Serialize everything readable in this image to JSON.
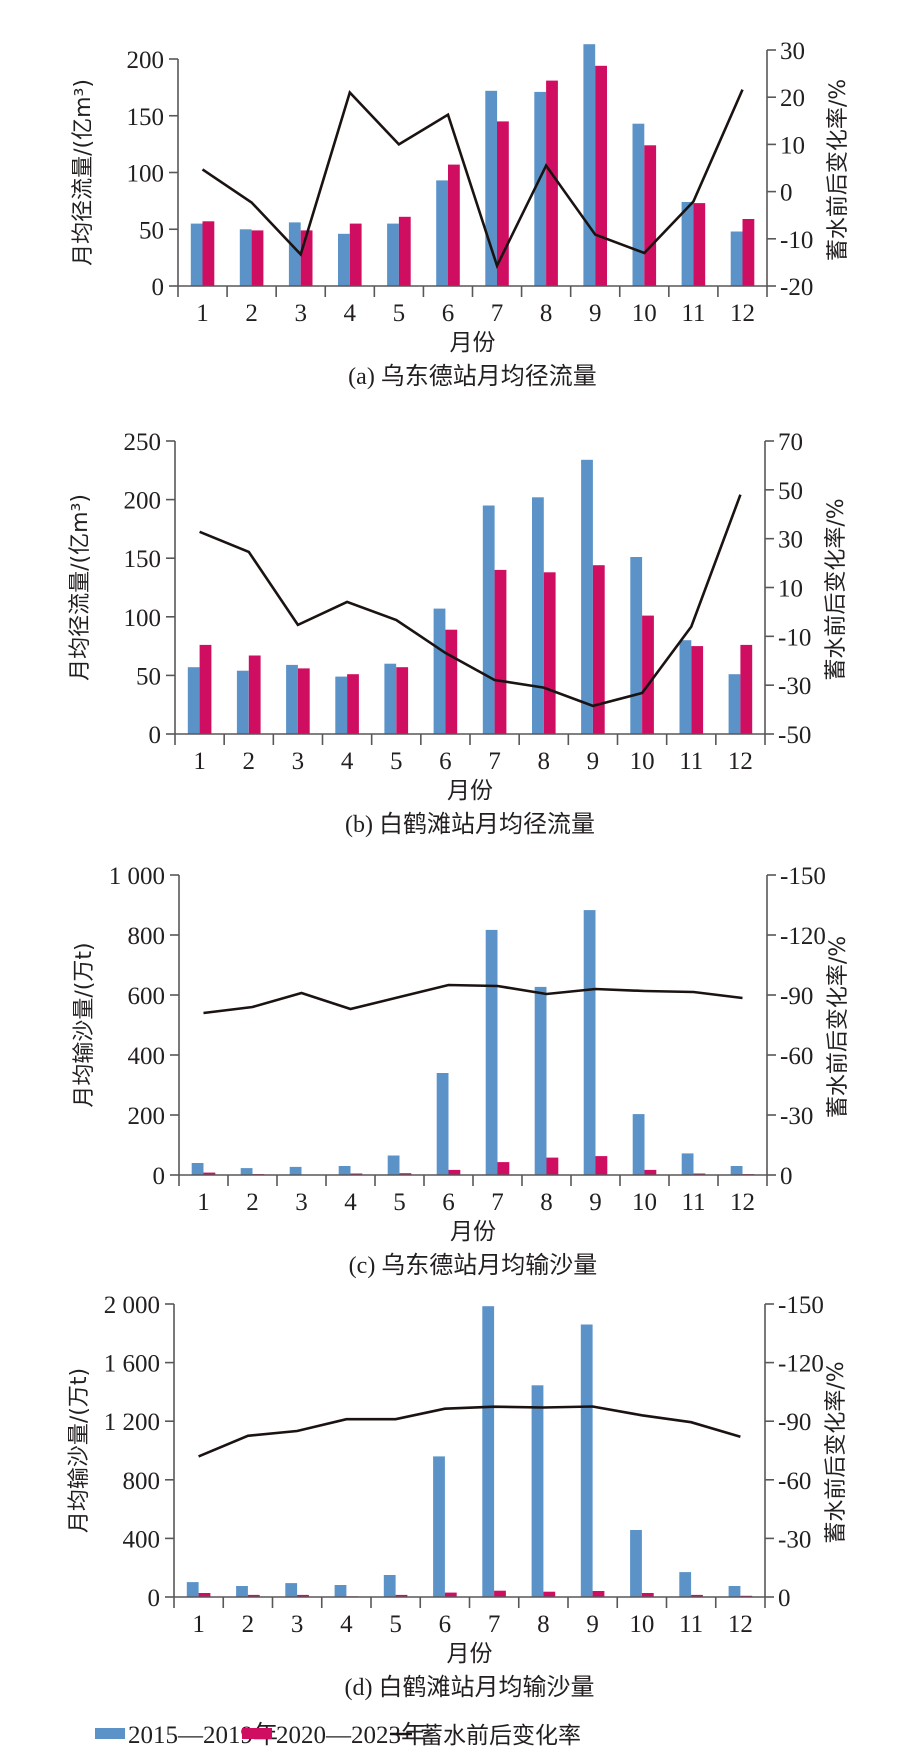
{
  "colors": {
    "series_2015_2019": "#5b93c8",
    "series_2020_2023": "#cf0e62",
    "change_rate": "#1a1311",
    "axis": "#595757",
    "text": "#231f20"
  },
  "legend": [
    {
      "label": "2015—2019年",
      "type": "bar",
      "color_key": "series_2015_2019"
    },
    {
      "label": "2020—2023年",
      "type": "bar",
      "color_key": "series_2020_2023"
    },
    {
      "label": "蓄水前后变化率",
      "type": "line",
      "color_key": "change_rate"
    }
  ],
  "chart_data": [
    {
      "id": "a",
      "type": "bar",
      "title": "(a) 乌东德站月均径流量",
      "xlabel": "月份",
      "ylabel": "月均径流量/(亿m³)",
      "ylabel_right": "蓄水前后变化率/%",
      "categories": [
        "1",
        "2",
        "3",
        "4",
        "5",
        "6",
        "7",
        "8",
        "9",
        "10",
        "11",
        "12"
      ],
      "ylim": [
        0,
        200
      ],
      "yticks": [
        0,
        50,
        100,
        150,
        200
      ],
      "ytick_labels": [
        "0",
        "50",
        "100",
        "150",
        "200"
      ],
      "ylim_right": [
        -20,
        30
      ],
      "yticks_right": [
        -20,
        -10,
        0,
        10,
        20,
        30
      ],
      "ytick_labels_right": [
        "-20",
        "-10",
        "0",
        "10",
        "20",
        "30"
      ],
      "right_inverted": false,
      "grid": false,
      "series": [
        {
          "name": "2015—2019年",
          "kind": "bar",
          "axis": "left",
          "values": [
            55,
            50,
            56,
            46,
            55,
            93,
            172,
            171,
            213,
            143,
            74,
            48
          ]
        },
        {
          "name": "2020—2023年",
          "kind": "bar",
          "axis": "left",
          "values": [
            57,
            49,
            49,
            55,
            61,
            107,
            145,
            181,
            194,
            124,
            73,
            59
          ]
        },
        {
          "name": "蓄水前后变化率",
          "kind": "line",
          "axis": "right",
          "values": [
            4.7,
            -2.3,
            -13.3,
            21,
            10,
            16.3,
            -15.7,
            5.5,
            -9.1,
            -13,
            -2.1,
            21.6
          ]
        }
      ]
    },
    {
      "id": "b",
      "type": "bar",
      "title": "(b) 白鹤滩站月均径流量",
      "xlabel": "月份",
      "ylabel": "月均径流量/(亿m³)",
      "ylabel_right": "蓄水前后变化率/%",
      "categories": [
        "1",
        "2",
        "3",
        "4",
        "5",
        "6",
        "7",
        "8",
        "9",
        "10",
        "11",
        "12"
      ],
      "ylim": [
        0,
        250
      ],
      "yticks": [
        0,
        50,
        100,
        150,
        200,
        250
      ],
      "ytick_labels": [
        "0",
        "50",
        "100",
        "150",
        "200",
        "250"
      ],
      "ylim_right": [
        -50,
        70
      ],
      "yticks_right": [
        -50,
        -30,
        -10,
        10,
        30,
        50,
        70
      ],
      "ytick_labels_right": [
        "-50",
        "-30",
        "-10",
        "10",
        "30",
        "50",
        "70"
      ],
      "right_inverted": false,
      "grid": false,
      "series": [
        {
          "name": "2015—2019年",
          "kind": "bar",
          "axis": "left",
          "values": [
            57,
            54,
            59,
            49,
            60,
            107,
            195,
            202,
            234,
            151,
            80,
            51
          ]
        },
        {
          "name": "2020—2023年",
          "kind": "bar",
          "axis": "left",
          "values": [
            76,
            67,
            56,
            51,
            57,
            89,
            140,
            138,
            144,
            101,
            75,
            76
          ]
        },
        {
          "name": "蓄水前后变化率",
          "kind": "line",
          "axis": "right",
          "values": [
            32.8,
            24.6,
            -5.3,
            4.1,
            -3.3,
            -16.8,
            -27.9,
            -31,
            -38.5,
            -33.2,
            -6,
            48
          ]
        }
      ]
    },
    {
      "id": "c",
      "type": "bar",
      "title": "(c) 乌东德站月均输沙量",
      "xlabel": "月份",
      "ylabel": "月均输沙量/(万t)",
      "ylabel_right": "蓄水前后变化率/%",
      "categories": [
        "1",
        "2",
        "3",
        "4",
        "5",
        "6",
        "7",
        "8",
        "9",
        "10",
        "11",
        "12"
      ],
      "ylim": [
        0,
        1000
      ],
      "yticks": [
        0,
        200,
        400,
        600,
        800,
        1000
      ],
      "ytick_labels": [
        "0",
        "200",
        "400",
        "600",
        "800",
        "1 000"
      ],
      "ylim_right": [
        0,
        -150
      ],
      "yticks_right": [
        0,
        -30,
        -60,
        -90,
        -120,
        -150
      ],
      "ytick_labels_right": [
        "0",
        "-30",
        "-60",
        "-90",
        "-120",
        "-150"
      ],
      "right_inverted": true,
      "grid": false,
      "series": [
        {
          "name": "2015—2019年",
          "kind": "bar",
          "axis": "left",
          "values": [
            40,
            23,
            27,
            30,
            65,
            340,
            817,
            627,
            883,
            203,
            72,
            30
          ]
        },
        {
          "name": "2020—2023年",
          "kind": "bar",
          "axis": "left",
          "values": [
            8,
            3,
            1,
            5,
            6,
            17,
            43,
            58,
            63,
            17,
            5,
            3
          ]
        },
        {
          "name": "蓄水前后变化率",
          "kind": "line",
          "axis": "right",
          "values": [
            -81,
            -84,
            -91,
            -83,
            -89,
            -95,
            -94.5,
            -90.5,
            -93,
            -92,
            -91.5,
            -88.5
          ]
        }
      ]
    },
    {
      "id": "d",
      "type": "bar",
      "title": "(d) 白鹤滩站月均输沙量",
      "xlabel": "月份",
      "ylabel": "月均输沙量/(万t)",
      "ylabel_right": "蓄水前后变化率/%",
      "categories": [
        "1",
        "2",
        "3",
        "4",
        "5",
        "6",
        "7",
        "8",
        "9",
        "10",
        "11",
        "12"
      ],
      "ylim": [
        0,
        2000
      ],
      "yticks": [
        0,
        400,
        800,
        1200,
        1600,
        2000
      ],
      "ytick_labels": [
        "0",
        "400",
        "800",
        "1 200",
        "1 600",
        "2 000"
      ],
      "ylim_right": [
        0,
        -150
      ],
      "yticks_right": [
        0,
        -30,
        -60,
        -90,
        -120,
        -150
      ],
      "ytick_labels_right": [
        "0",
        "-30",
        "-60",
        "-90",
        "-120",
        "-150"
      ],
      "right_inverted": true,
      "grid": false,
      "series": [
        {
          "name": "2015—2019年",
          "kind": "bar",
          "axis": "left",
          "values": [
            102,
            75,
            95,
            82,
            150,
            960,
            1985,
            1445,
            1860,
            457,
            170,
            75
          ]
        },
        {
          "name": "2020—2023年",
          "kind": "bar",
          "axis": "left",
          "values": [
            27,
            14,
            14,
            5,
            14,
            30,
            43,
            36,
            41,
            27,
            14,
            8
          ]
        },
        {
          "name": "蓄水前后变化率",
          "kind": "line",
          "axis": "right",
          "values": [
            -72,
            -82.5,
            -85,
            -91,
            -91,
            -96.4,
            -97.4,
            -97,
            -97.5,
            -93,
            -89.5,
            -82
          ]
        }
      ]
    }
  ]
}
